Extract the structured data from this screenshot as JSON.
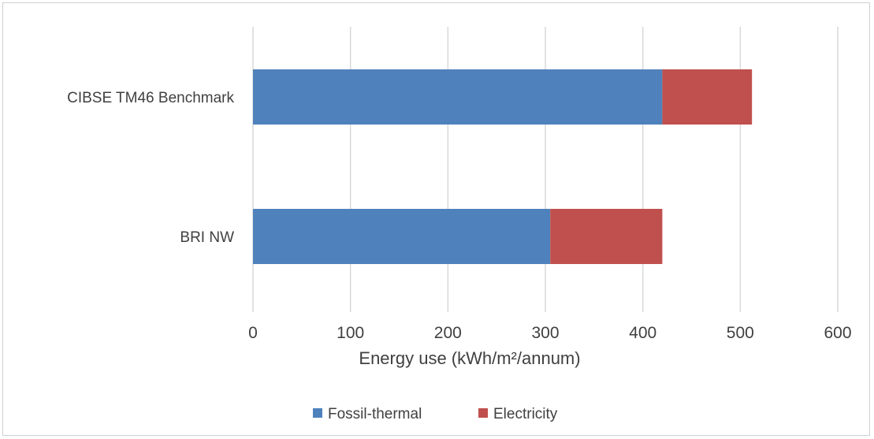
{
  "chart_data": {
    "type": "bar",
    "orientation": "horizontal",
    "stacked": true,
    "categories": [
      "CIBSE TM46 Benchmark",
      "BRI NW"
    ],
    "series": [
      {
        "name": "Fossil-thermal",
        "values": [
          420,
          305
        ],
        "color": "#4f81bd"
      },
      {
        "name": "Electricity",
        "values": [
          92,
          115
        ],
        "color": "#c0504d"
      }
    ],
    "xlabel": "Energy use (kWh/m²/annum)",
    "xlim": [
      0,
      600
    ],
    "xticks": [
      "0",
      "100",
      "200",
      "300",
      "400",
      "500",
      "600"
    ],
    "grid": "vertical",
    "legend_position": "bottom"
  }
}
